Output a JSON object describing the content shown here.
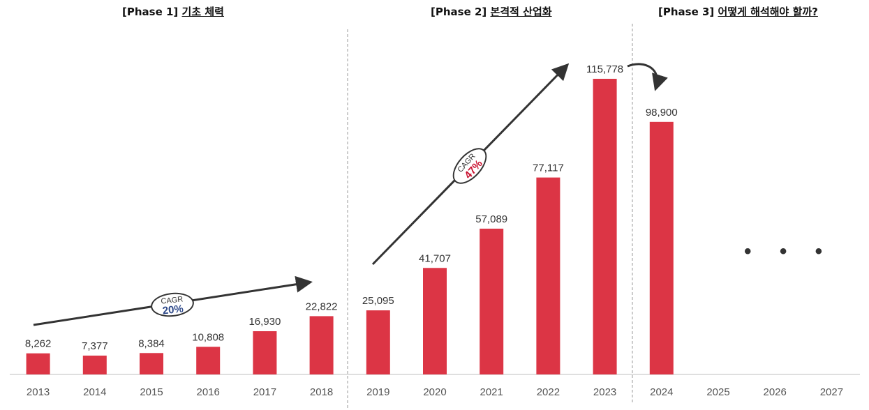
{
  "phases": [
    {
      "tag": "[Phase 1]",
      "name": "기초 체력"
    },
    {
      "tag": "[Phase 2]",
      "name": "본격적 산업화"
    },
    {
      "tag": "[Phase 3]",
      "name": "어떻게 해석해야 할까?"
    }
  ],
  "cagr_badges": [
    {
      "label": "CAGR",
      "value": "20%",
      "color": "#2f4a8a"
    },
    {
      "label": "CAGR",
      "value": "47%",
      "color": "#c8102e"
    }
  ],
  "ellipsis": "• • •",
  "colors": {
    "bar": "#dc3545",
    "arrow": "#333333",
    "axis": "#bfbfbf",
    "divider": "#999999"
  },
  "chart_data": {
    "type": "bar",
    "categories": [
      "2013",
      "2014",
      "2015",
      "2016",
      "2017",
      "2018",
      "2019",
      "2020",
      "2021",
      "2022",
      "2023",
      "2024",
      "2025",
      "2026",
      "2027"
    ],
    "values": [
      8262,
      7377,
      8384,
      10808,
      16930,
      22822,
      25095,
      41707,
      57089,
      77117,
      115778,
      98900,
      null,
      null,
      null
    ],
    "data_labels": [
      "8,262",
      "7,377",
      "8,384",
      "10,808",
      "16,930",
      "22,822",
      "25,095",
      "41,707",
      "57,089",
      "77,117",
      "115,778",
      "98,900",
      "",
      "",
      ""
    ],
    "title": "",
    "xlabel": "",
    "ylabel": "",
    "ylim": [
      0,
      125000
    ],
    "grid": false,
    "legend": "none",
    "annotations": [
      "CAGR 20%",
      "CAGR 47%"
    ]
  }
}
